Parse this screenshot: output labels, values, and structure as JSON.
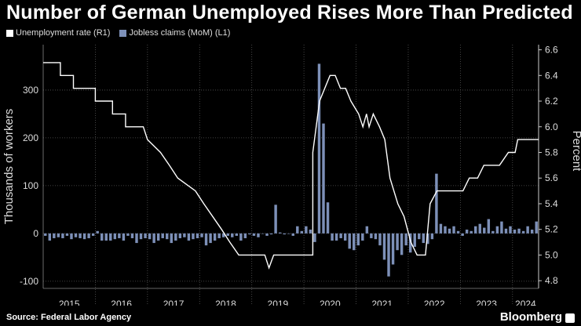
{
  "title": "Number of German Unemployed Rises More Than Predicted",
  "source": "Source: Federal Labor Agency",
  "brand": "Bloomberg",
  "colors": {
    "background": "#000000",
    "line": "#ffffff",
    "bars": "#7d90b8",
    "grid": "#555555"
  },
  "chart_data": {
    "type": "bar+line",
    "legend": [
      "Unemployment rate (R1)",
      "Jobless claims (MoM) (L1)"
    ],
    "y_left": {
      "label": "Thousands of workers",
      "ticks": [
        -100,
        0,
        100,
        200,
        300
      ],
      "range": [
        -115,
        395
      ]
    },
    "y_right": {
      "label": "Percent",
      "ticks": [
        4.8,
        5.0,
        5.2,
        5.4,
        5.6,
        5.8,
        6.0,
        6.2,
        6.4,
        6.6
      ],
      "range": [
        4.74,
        6.64
      ]
    },
    "x_years": [
      "2015",
      "2016",
      "2017",
      "2018",
      "2019",
      "2020",
      "2021",
      "2022",
      "2023",
      "2024"
    ],
    "x_range": [
      2015.0,
      2024.5
    ],
    "series": [
      {
        "name": "Jobless claims (MoM)",
        "axis": "left",
        "kind": "bar",
        "x_start": 2015.0,
        "step": 0.08333,
        "values": [
          -5,
          -15,
          -10,
          -8,
          -10,
          -5,
          -12,
          -8,
          -10,
          -12,
          -10,
          -5,
          5,
          -15,
          -15,
          -15,
          -12,
          -10,
          -15,
          -5,
          -10,
          -20,
          -12,
          -10,
          -12,
          -20,
          -15,
          -10,
          -12,
          -20,
          -15,
          -10,
          -8,
          -15,
          -12,
          -10,
          -8,
          -25,
          -20,
          -15,
          -10,
          -8,
          -5,
          -8,
          -5,
          -15,
          -10,
          -2,
          -5,
          -8,
          0,
          -5,
          -2,
          60,
          2,
          -2,
          0,
          -5,
          15,
          5,
          15,
          8,
          -18,
          355,
          230,
          65,
          -15,
          -15,
          -10,
          -15,
          -32,
          -35,
          -25,
          -15,
          15,
          -10,
          -12,
          -25,
          -55,
          -90,
          -65,
          -35,
          -45,
          -25,
          -40,
          -28,
          -12,
          -20,
          -22,
          -12,
          125,
          20,
          15,
          10,
          15,
          5,
          -5,
          8,
          5,
          15,
          20,
          12,
          30,
          5,
          15,
          25,
          10,
          15,
          8,
          10,
          5,
          15,
          8,
          25
        ]
      },
      {
        "name": "Unemployment rate",
        "axis": "right",
        "kind": "step-line",
        "points": [
          [
            2015.0,
            6.5
          ],
          [
            2015.33,
            6.5
          ],
          [
            2015.33,
            6.4
          ],
          [
            2015.58,
            6.4
          ],
          [
            2015.58,
            6.3
          ],
          [
            2016.0,
            6.3
          ],
          [
            2016.0,
            6.2
          ],
          [
            2016.33,
            6.2
          ],
          [
            2016.33,
            6.1
          ],
          [
            2016.58,
            6.1
          ],
          [
            2016.58,
            6.0
          ],
          [
            2016.92,
            6.0
          ],
          [
            2017.0,
            5.9
          ],
          [
            2017.25,
            5.8
          ],
          [
            2017.42,
            5.7
          ],
          [
            2017.58,
            5.6
          ],
          [
            2017.92,
            5.5
          ],
          [
            2018.08,
            5.4
          ],
          [
            2018.25,
            5.3
          ],
          [
            2018.42,
            5.2
          ],
          [
            2018.58,
            5.1
          ],
          [
            2018.75,
            5.0
          ],
          [
            2019.25,
            5.0
          ],
          [
            2019.33,
            4.9
          ],
          [
            2019.42,
            5.0
          ],
          [
            2020.17,
            5.0
          ],
          [
            2020.17,
            5.8
          ],
          [
            2020.3,
            6.2
          ],
          [
            2020.5,
            6.4
          ],
          [
            2020.6,
            6.4
          ],
          [
            2020.7,
            6.3
          ],
          [
            2020.8,
            6.3
          ],
          [
            2020.9,
            6.2
          ],
          [
            2021.05,
            6.1
          ],
          [
            2021.13,
            6.0
          ],
          [
            2021.2,
            6.1
          ],
          [
            2021.25,
            6.0
          ],
          [
            2021.33,
            6.1
          ],
          [
            2021.45,
            6.0
          ],
          [
            2021.55,
            5.9
          ],
          [
            2021.65,
            5.6
          ],
          [
            2021.8,
            5.4
          ],
          [
            2021.92,
            5.3
          ],
          [
            2022.05,
            5.1
          ],
          [
            2022.17,
            5.0
          ],
          [
            2022.33,
            5.0
          ],
          [
            2022.42,
            5.4
          ],
          [
            2022.55,
            5.5
          ],
          [
            2022.92,
            5.5
          ],
          [
            2023.05,
            5.5
          ],
          [
            2023.17,
            5.6
          ],
          [
            2023.33,
            5.6
          ],
          [
            2023.45,
            5.7
          ],
          [
            2023.75,
            5.7
          ],
          [
            2023.92,
            5.8
          ],
          [
            2024.05,
            5.8
          ],
          [
            2024.1,
            5.9
          ],
          [
            2024.5,
            5.9
          ]
        ]
      }
    ]
  }
}
